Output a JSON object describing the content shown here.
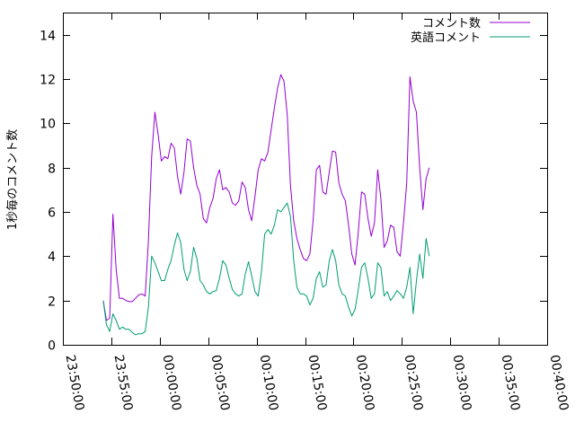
{
  "chart_data": {
    "type": "line",
    "title": "",
    "xlabel": "",
    "ylabel": "1秒毎のコメント数",
    "xlim": [
      "23:50:00",
      "00:40:00"
    ],
    "ylim": [
      0,
      15
    ],
    "x_ticks": [
      "23:50:00",
      "23:55:00",
      "00:00:00",
      "00:05:00",
      "00:10:00",
      "00:15:00",
      "00:20:00",
      "00:25:00",
      "00:30:00",
      "00:35:00",
      "00:40:00"
    ],
    "y_ticks": [
      0,
      2,
      4,
      6,
      8,
      10,
      12,
      14
    ],
    "legend_position": "top-right",
    "grid": false,
    "series": [
      {
        "name": "コメント数",
        "color": "#9400d3",
        "points": [
          [
            "23:54:10",
            2.0
          ],
          [
            "23:54:30",
            1.1
          ],
          [
            "23:54:50",
            1.2
          ],
          [
            "23:55:10",
            5.9
          ],
          [
            "23:55:30",
            3.4
          ],
          [
            "23:55:50",
            2.1
          ],
          [
            "23:56:10",
            2.1
          ],
          [
            "23:56:30",
            2.0
          ],
          [
            "23:56:50",
            1.95
          ],
          [
            "23:57:10",
            1.95
          ],
          [
            "23:57:30",
            2.1
          ],
          [
            "23:57:50",
            2.25
          ],
          [
            "23:58:10",
            2.3
          ],
          [
            "23:58:30",
            2.2
          ],
          [
            "23:58:50",
            4.7
          ],
          [
            "23:59:10",
            8.5
          ],
          [
            "23:59:30",
            10.5
          ],
          [
            "23:59:50",
            9.5
          ],
          [
            "00:00:10",
            8.3
          ],
          [
            "00:00:30",
            8.5
          ],
          [
            "00:00:50",
            8.4
          ],
          [
            "00:01:10",
            9.1
          ],
          [
            "00:01:30",
            8.9
          ],
          [
            "00:01:50",
            7.6
          ],
          [
            "00:02:10",
            6.8
          ],
          [
            "00:02:30",
            7.8
          ],
          [
            "00:02:50",
            9.3
          ],
          [
            "00:03:10",
            9.2
          ],
          [
            "00:03:30",
            8.0
          ],
          [
            "00:03:50",
            7.2
          ],
          [
            "00:04:10",
            6.8
          ],
          [
            "00:04:30",
            5.7
          ],
          [
            "00:04:50",
            5.5
          ],
          [
            "00:05:10",
            6.2
          ],
          [
            "00:05:30",
            6.6
          ],
          [
            "00:05:50",
            7.5
          ],
          [
            "00:06:10",
            7.9
          ],
          [
            "00:06:30",
            7.0
          ],
          [
            "00:06:50",
            7.1
          ],
          [
            "00:07:10",
            6.9
          ],
          [
            "00:07:30",
            6.4
          ],
          [
            "00:07:50",
            6.3
          ],
          [
            "00:08:10",
            6.5
          ],
          [
            "00:08:30",
            7.35
          ],
          [
            "00:08:50",
            7.1
          ],
          [
            "00:09:10",
            6.1
          ],
          [
            "00:09:30",
            5.6
          ],
          [
            "00:09:50",
            6.7
          ],
          [
            "00:10:10",
            7.9
          ],
          [
            "00:10:30",
            8.4
          ],
          [
            "00:10:50",
            8.3
          ],
          [
            "00:11:10",
            8.7
          ],
          [
            "00:11:30",
            9.7
          ],
          [
            "00:11:50",
            10.7
          ],
          [
            "00:12:10",
            11.6
          ],
          [
            "00:12:30",
            12.2
          ],
          [
            "00:12:50",
            11.9
          ],
          [
            "00:13:10",
            10.4
          ],
          [
            "00:13:30",
            7.2
          ],
          [
            "00:13:50",
            5.6
          ],
          [
            "00:14:10",
            4.8
          ],
          [
            "00:14:30",
            4.3
          ],
          [
            "00:14:50",
            3.9
          ],
          [
            "00:15:10",
            3.8
          ],
          [
            "00:15:30",
            4.1
          ],
          [
            "00:15:50",
            5.6
          ],
          [
            "00:16:10",
            7.9
          ],
          [
            "00:16:30",
            8.1
          ],
          [
            "00:16:50",
            6.9
          ],
          [
            "00:17:10",
            6.8
          ],
          [
            "00:17:30",
            7.8
          ],
          [
            "00:17:50",
            8.75
          ],
          [
            "00:18:10",
            8.7
          ],
          [
            "00:18:30",
            7.3
          ],
          [
            "00:18:50",
            6.8
          ],
          [
            "00:19:10",
            6.5
          ],
          [
            "00:19:30",
            5.4
          ],
          [
            "00:19:50",
            4.1
          ],
          [
            "00:20:10",
            3.6
          ],
          [
            "00:20:30",
            5.1
          ],
          [
            "00:20:50",
            6.9
          ],
          [
            "00:21:10",
            6.8
          ],
          [
            "00:21:30",
            5.7
          ],
          [
            "00:21:50",
            4.9
          ],
          [
            "00:22:10",
            5.5
          ],
          [
            "00:22:30",
            7.9
          ],
          [
            "00:22:50",
            6.6
          ],
          [
            "00:23:10",
            4.4
          ],
          [
            "00:23:30",
            4.7
          ],
          [
            "00:23:50",
            5.4
          ],
          [
            "00:24:10",
            5.3
          ],
          [
            "00:24:30",
            4.2
          ],
          [
            "00:24:50",
            4.0
          ],
          [
            "00:25:10",
            5.5
          ],
          [
            "00:25:30",
            7.3
          ],
          [
            "00:25:50",
            12.1
          ],
          [
            "00:26:10",
            11.0
          ],
          [
            "00:26:30",
            10.5
          ],
          [
            "00:26:50",
            8.0
          ],
          [
            "00:27:10",
            6.1
          ],
          [
            "00:27:30",
            7.5
          ],
          [
            "00:27:50",
            8.0
          ]
        ]
      },
      {
        "name": "英語コメント",
        "color": "#009e73",
        "points": [
          [
            "23:54:10",
            2.0
          ],
          [
            "23:54:30",
            0.9
          ],
          [
            "23:54:50",
            0.6
          ],
          [
            "23:55:10",
            1.4
          ],
          [
            "23:55:30",
            1.1
          ],
          [
            "23:55:50",
            0.7
          ],
          [
            "23:56:10",
            0.8
          ],
          [
            "23:56:30",
            0.7
          ],
          [
            "23:56:50",
            0.7
          ],
          [
            "23:57:10",
            0.55
          ],
          [
            "23:57:30",
            0.45
          ],
          [
            "23:57:50",
            0.5
          ],
          [
            "23:58:10",
            0.5
          ],
          [
            "23:58:30",
            0.6
          ],
          [
            "23:58:50",
            1.7
          ],
          [
            "23:59:10",
            4.0
          ],
          [
            "23:59:30",
            3.7
          ],
          [
            "23:59:50",
            3.3
          ],
          [
            "00:00:10",
            2.9
          ],
          [
            "00:00:30",
            2.9
          ],
          [
            "00:00:50",
            3.4
          ],
          [
            "00:01:10",
            3.8
          ],
          [
            "00:01:30",
            4.5
          ],
          [
            "00:01:50",
            5.05
          ],
          [
            "00:02:10",
            4.6
          ],
          [
            "00:02:30",
            3.4
          ],
          [
            "00:02:50",
            2.9
          ],
          [
            "00:03:10",
            3.3
          ],
          [
            "00:03:30",
            4.4
          ],
          [
            "00:03:50",
            3.9
          ],
          [
            "00:04:10",
            2.9
          ],
          [
            "00:04:30",
            2.7
          ],
          [
            "00:04:50",
            2.4
          ],
          [
            "00:05:10",
            2.3
          ],
          [
            "00:05:30",
            2.4
          ],
          [
            "00:05:50",
            2.45
          ],
          [
            "00:06:10",
            3.0
          ],
          [
            "00:06:30",
            3.8
          ],
          [
            "00:06:50",
            3.6
          ],
          [
            "00:07:10",
            3.0
          ],
          [
            "00:07:30",
            2.5
          ],
          [
            "00:07:50",
            2.3
          ],
          [
            "00:08:10",
            2.2
          ],
          [
            "00:08:30",
            2.3
          ],
          [
            "00:08:50",
            3.2
          ],
          [
            "00:09:10",
            3.75
          ],
          [
            "00:09:30",
            3.1
          ],
          [
            "00:09:50",
            2.4
          ],
          [
            "00:10:10",
            2.2
          ],
          [
            "00:10:30",
            3.3
          ],
          [
            "00:10:50",
            5.0
          ],
          [
            "00:11:10",
            5.2
          ],
          [
            "00:11:30",
            5.0
          ],
          [
            "00:11:50",
            5.4
          ],
          [
            "00:12:10",
            6.1
          ],
          [
            "00:12:30",
            6.0
          ],
          [
            "00:12:50",
            6.2
          ],
          [
            "00:13:10",
            6.4
          ],
          [
            "00:13:30",
            5.8
          ],
          [
            "00:13:50",
            3.8
          ],
          [
            "00:14:10",
            2.6
          ],
          [
            "00:14:30",
            2.3
          ],
          [
            "00:14:50",
            2.3
          ],
          [
            "00:15:10",
            2.2
          ],
          [
            "00:15:30",
            1.8
          ],
          [
            "00:15:50",
            2.1
          ],
          [
            "00:16:10",
            3.0
          ],
          [
            "00:16:30",
            3.3
          ],
          [
            "00:16:50",
            2.6
          ],
          [
            "00:17:10",
            2.7
          ],
          [
            "00:17:30",
            3.8
          ],
          [
            "00:17:50",
            4.3
          ],
          [
            "00:18:10",
            3.8
          ],
          [
            "00:18:30",
            2.7
          ],
          [
            "00:18:50",
            2.3
          ],
          [
            "00:19:10",
            2.2
          ],
          [
            "00:19:30",
            1.7
          ],
          [
            "00:19:50",
            1.3
          ],
          [
            "00:20:10",
            1.6
          ],
          [
            "00:20:30",
            2.5
          ],
          [
            "00:20:50",
            3.5
          ],
          [
            "00:21:10",
            3.7
          ],
          [
            "00:21:30",
            3.0
          ],
          [
            "00:21:50",
            2.1
          ],
          [
            "00:22:10",
            2.3
          ],
          [
            "00:22:30",
            3.7
          ],
          [
            "00:22:50",
            3.5
          ],
          [
            "00:23:10",
            2.2
          ],
          [
            "00:23:30",
            2.4
          ],
          [
            "00:23:50",
            2.0
          ],
          [
            "00:24:10",
            2.2
          ],
          [
            "00:24:30",
            2.45
          ],
          [
            "00:24:50",
            2.3
          ],
          [
            "00:25:10",
            2.1
          ],
          [
            "00:25:30",
            2.6
          ],
          [
            "00:25:50",
            3.5
          ],
          [
            "00:26:10",
            1.4
          ],
          [
            "00:26:30",
            2.9
          ],
          [
            "00:26:50",
            4.1
          ],
          [
            "00:27:10",
            3.0
          ],
          [
            "00:27:30",
            4.8
          ],
          [
            "00:27:50",
            4.0
          ]
        ]
      }
    ]
  }
}
